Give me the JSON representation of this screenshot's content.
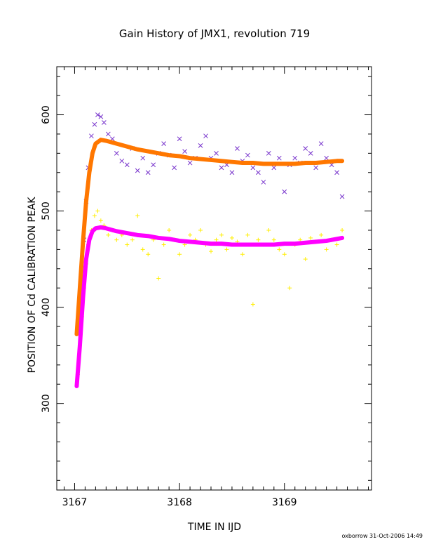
{
  "chart_data": {
    "type": "scatter",
    "title": "Gain History of JMX1, revolution 719",
    "xlabel": "TIME IN IJD",
    "ylabel": "POSITION OF Cd CALIBRATION PEAK",
    "xlim": [
      3166.83,
      3169.83
    ],
    "ylim": [
      210,
      650
    ],
    "xticks": [
      3167,
      3168,
      3169
    ],
    "xtick_labels": [
      "3167",
      "3168",
      "3169"
    ],
    "yticks": [
      300,
      400,
      500,
      600
    ],
    "ytick_labels": [
      "300",
      "400",
      "500",
      "600"
    ],
    "legend": "none",
    "grid": false,
    "series": [
      {
        "marker": "x",
        "color": "#7733cc",
        "x": [
          3167.03,
          3167.05,
          3167.07,
          3167.09,
          3167.11,
          3167.13,
          3167.16,
          3167.19,
          3167.22,
          3167.25,
          3167.28,
          3167.32,
          3167.36,
          3167.4,
          3167.45,
          3167.5,
          3167.55,
          3167.6,
          3167.65,
          3167.7,
          3167.75,
          3167.8,
          3167.85,
          3167.9,
          3167.95,
          3168.0,
          3168.05,
          3168.1,
          3168.15,
          3168.2,
          3168.25,
          3168.3,
          3168.35,
          3168.4,
          3168.45,
          3168.5,
          3168.55,
          3168.6,
          3168.65,
          3168.7,
          3168.75,
          3168.8,
          3168.85,
          3168.9,
          3168.95,
          3169.0,
          3169.05,
          3169.1,
          3169.15,
          3169.2,
          3169.25,
          3169.3,
          3169.35,
          3169.4,
          3169.45,
          3169.5,
          3169.55
        ],
        "y": [
          375,
          400,
          430,
          470,
          510,
          545,
          578,
          590,
          600,
          598,
          592,
          580,
          575,
          560,
          552,
          548,
          565,
          542,
          555,
          540,
          548,
          560,
          570,
          558,
          545,
          575,
          562,
          550,
          555,
          568,
          578,
          555,
          560,
          545,
          548,
          540,
          565,
          552,
          558,
          545,
          540,
          530,
          560,
          545,
          555,
          520,
          548,
          555,
          550,
          565,
          560,
          545,
          570,
          555,
          548,
          540,
          515
        ]
      },
      {
        "marker": "+",
        "color": "#ffee00",
        "x": [
          3167.03,
          3167.05,
          3167.07,
          3167.09,
          3167.11,
          3167.13,
          3167.16,
          3167.19,
          3167.22,
          3167.25,
          3167.28,
          3167.32,
          3167.36,
          3167.4,
          3167.45,
          3167.5,
          3167.55,
          3167.6,
          3167.65,
          3167.7,
          3167.75,
          3167.8,
          3167.85,
          3167.9,
          3167.95,
          3168.0,
          3168.05,
          3168.1,
          3168.15,
          3168.2,
          3168.25,
          3168.3,
          3168.35,
          3168.4,
          3168.45,
          3168.5,
          3168.55,
          3168.6,
          3168.65,
          3168.7,
          3168.75,
          3168.8,
          3168.85,
          3168.9,
          3168.95,
          3169.0,
          3169.05,
          3169.1,
          3169.15,
          3169.2,
          3169.25,
          3169.3,
          3169.35,
          3169.4,
          3169.45,
          3169.5,
          3169.55
        ],
        "y": [
          330,
          360,
          390,
          420,
          445,
          465,
          480,
          495,
          500,
          490,
          485,
          475,
          480,
          470,
          475,
          465,
          470,
          495,
          460,
          455,
          470,
          430,
          465,
          480,
          470,
          455,
          465,
          475,
          470,
          480,
          465,
          458,
          470,
          475,
          460,
          472,
          468,
          455,
          475,
          403,
          470,
          465,
          480,
          470,
          460,
          455,
          420,
          465,
          470,
          450,
          472,
          468,
          475,
          460,
          470,
          465,
          480
        ]
      },
      {
        "marker": "line",
        "color": "#ff7700",
        "x": [
          3167.02,
          3167.05,
          3167.08,
          3167.11,
          3167.14,
          3167.17,
          3167.2,
          3167.25,
          3167.3,
          3167.4,
          3167.5,
          3167.6,
          3167.7,
          3167.8,
          3167.9,
          3168.0,
          3168.1,
          3168.2,
          3168.3,
          3168.4,
          3168.5,
          3168.6,
          3168.7,
          3168.8,
          3168.9,
          3169.0,
          3169.1,
          3169.2,
          3169.3,
          3169.4,
          3169.5,
          3169.55
        ],
        "y": [
          372,
          420,
          468,
          510,
          540,
          560,
          570,
          574,
          573,
          570,
          567,
          564,
          562,
          560,
          558,
          557,
          555,
          554,
          553,
          552,
          551,
          550,
          550,
          549,
          549,
          549,
          549,
          550,
          550,
          551,
          552,
          552
        ]
      },
      {
        "marker": "line",
        "color": "#ff00ff",
        "x": [
          3167.02,
          3167.05,
          3167.08,
          3167.11,
          3167.14,
          3167.17,
          3167.2,
          3167.25,
          3167.3,
          3167.4,
          3167.5,
          3167.6,
          3167.7,
          3167.8,
          3167.9,
          3168.0,
          3168.1,
          3168.2,
          3168.3,
          3168.4,
          3168.5,
          3168.6,
          3168.7,
          3168.8,
          3168.9,
          3169.0,
          3169.1,
          3169.2,
          3169.3,
          3169.4,
          3169.5,
          3169.55
        ],
        "y": [
          318,
          360,
          410,
          450,
          470,
          479,
          482,
          483,
          482,
          479,
          477,
          475,
          474,
          472,
          471,
          469,
          468,
          467,
          466,
          466,
          465,
          465,
          465,
          465,
          465,
          466,
          466,
          467,
          468,
          469,
          471,
          472
        ]
      }
    ]
  },
  "footer": "oxborrow 31-Oct-2006 14:49"
}
